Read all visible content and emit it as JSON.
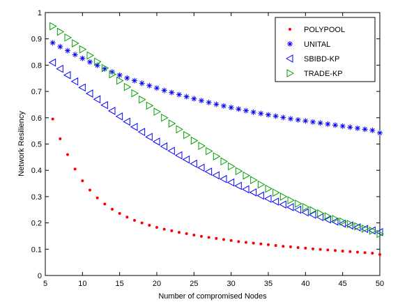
{
  "chart_data": {
    "type": "scatter",
    "title": "",
    "xlabel": "Number of compromised Nodes",
    "ylabel": "Network Resiliency",
    "xlim": [
      5,
      50
    ],
    "ylim": [
      0,
      1
    ],
    "xticks": [
      5,
      10,
      15,
      20,
      25,
      30,
      35,
      40,
      45,
      50
    ],
    "yticks": [
      0,
      0.1,
      0.2,
      0.3,
      0.4,
      0.5,
      0.6,
      0.7,
      0.8,
      0.9,
      1
    ],
    "grid": false,
    "legend_position": "top-right",
    "x": [
      6,
      7,
      8,
      9,
      10,
      11,
      12,
      13,
      14,
      15,
      16,
      17,
      18,
      19,
      20,
      21,
      22,
      23,
      24,
      25,
      26,
      27,
      28,
      29,
      30,
      31,
      32,
      33,
      34,
      35,
      36,
      37,
      38,
      39,
      40,
      41,
      42,
      43,
      44,
      45,
      46,
      47,
      48,
      49,
      50
    ],
    "series": [
      {
        "name": "POLYPOOL",
        "marker": "dot",
        "color": "#ff0000",
        "values": [
          0.595,
          0.52,
          0.46,
          0.405,
          0.36,
          0.325,
          0.295,
          0.272,
          0.252,
          0.236,
          0.222,
          0.21,
          0.2,
          0.191,
          0.183,
          0.176,
          0.17,
          0.164,
          0.159,
          0.154,
          0.149,
          0.145,
          0.141,
          0.137,
          0.133,
          0.129,
          0.126,
          0.123,
          0.12,
          0.117,
          0.114,
          0.111,
          0.109,
          0.106,
          0.104,
          0.101,
          0.099,
          0.097,
          0.095,
          0.093,
          0.091,
          0.089,
          0.087,
          0.085,
          0.08
        ]
      },
      {
        "name": "UNITAL",
        "marker": "star",
        "color": "#0000ff",
        "values": [
          0.885,
          0.87,
          0.855,
          0.84,
          0.826,
          0.812,
          0.799,
          0.786,
          0.774,
          0.762,
          0.751,
          0.741,
          0.731,
          0.722,
          0.713,
          0.704,
          0.696,
          0.688,
          0.68,
          0.672,
          0.665,
          0.658,
          0.651,
          0.645,
          0.639,
          0.633,
          0.627,
          0.621,
          0.616,
          0.611,
          0.606,
          0.601,
          0.596,
          0.592,
          0.588,
          0.584,
          0.58,
          0.576,
          0.572,
          0.568,
          0.564,
          0.56,
          0.556,
          0.552,
          0.542
        ]
      },
      {
        "name": "SBIBD-KP",
        "marker": "triangle-left",
        "color": "#0000ff",
        "values": [
          0.81,
          0.786,
          0.762,
          0.738,
          0.715,
          0.692,
          0.67,
          0.648,
          0.626,
          0.605,
          0.585,
          0.565,
          0.546,
          0.527,
          0.509,
          0.491,
          0.474,
          0.457,
          0.441,
          0.425,
          0.41,
          0.395,
          0.381,
          0.367,
          0.354,
          0.341,
          0.328,
          0.316,
          0.304,
          0.292,
          0.281,
          0.27,
          0.26,
          0.25,
          0.24,
          0.231,
          0.222,
          0.213,
          0.205,
          0.197,
          0.19,
          0.183,
          0.177,
          0.171,
          0.165
        ]
      },
      {
        "name": "TRADE-KP",
        "marker": "triangle-right",
        "color": "#00a000",
        "values": [
          0.948,
          0.927,
          0.905,
          0.883,
          0.86,
          0.837,
          0.813,
          0.789,
          0.765,
          0.741,
          0.717,
          0.693,
          0.669,
          0.646,
          0.623,
          0.6,
          0.578,
          0.556,
          0.534,
          0.513,
          0.493,
          0.473,
          0.453,
          0.434,
          0.415,
          0.397,
          0.38,
          0.363,
          0.346,
          0.33,
          0.315,
          0.3,
          0.286,
          0.273,
          0.26,
          0.248,
          0.236,
          0.225,
          0.215,
          0.205,
          0.196,
          0.187,
          0.178,
          0.17,
          0.158
        ]
      }
    ]
  }
}
